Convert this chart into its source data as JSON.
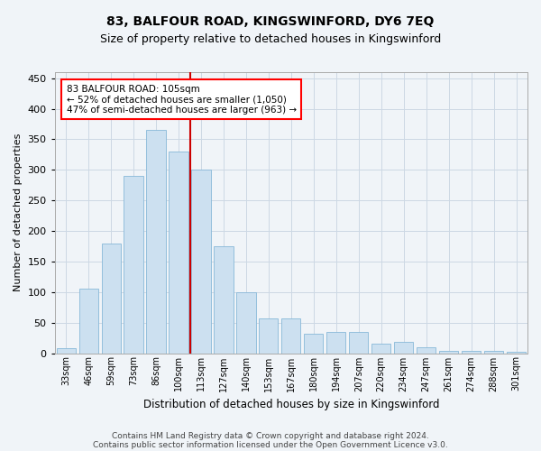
{
  "title": "83, BALFOUR ROAD, KINGSWINFORD, DY6 7EQ",
  "subtitle": "Size of property relative to detached houses in Kingswinford",
  "xlabel": "Distribution of detached houses by size in Kingswinford",
  "ylabel": "Number of detached properties",
  "footer1": "Contains HM Land Registry data © Crown copyright and database right 2024.",
  "footer2": "Contains public sector information licensed under the Open Government Licence v3.0.",
  "bar_color": "#cce0f0",
  "bar_edge_color": "#88b8d8",
  "grid_color": "#ccd8e4",
  "annotation_line1": "83 BALFOUR ROAD: 105sqm",
  "annotation_line2": "← 52% of detached houses are smaller (1,050)",
  "annotation_line3": "47% of semi-detached houses are larger (963) →",
  "vline_color": "#cc0000",
  "categories": [
    "33sqm",
    "46sqm",
    "59sqm",
    "73sqm",
    "86sqm",
    "100sqm",
    "113sqm",
    "127sqm",
    "140sqm",
    "153sqm",
    "167sqm",
    "180sqm",
    "194sqm",
    "207sqm",
    "220sqm",
    "234sqm",
    "247sqm",
    "261sqm",
    "274sqm",
    "288sqm",
    "301sqm"
  ],
  "values": [
    8,
    105,
    180,
    290,
    365,
    330,
    300,
    175,
    100,
    57,
    57,
    32,
    35,
    35,
    15,
    18,
    10,
    4,
    4,
    3,
    2
  ],
  "ylim": [
    0,
    460
  ],
  "yticks": [
    0,
    50,
    100,
    150,
    200,
    250,
    300,
    350,
    400,
    450
  ],
  "vline_x_index": 5,
  "background_color": "#f0f4f8",
  "title_fontsize": 10,
  "subtitle_fontsize": 9,
  "ylabel_fontsize": 8,
  "xlabel_fontsize": 8.5,
  "tick_fontsize": 7,
  "footer_fontsize": 6.5,
  "ann_fontsize": 7.5
}
